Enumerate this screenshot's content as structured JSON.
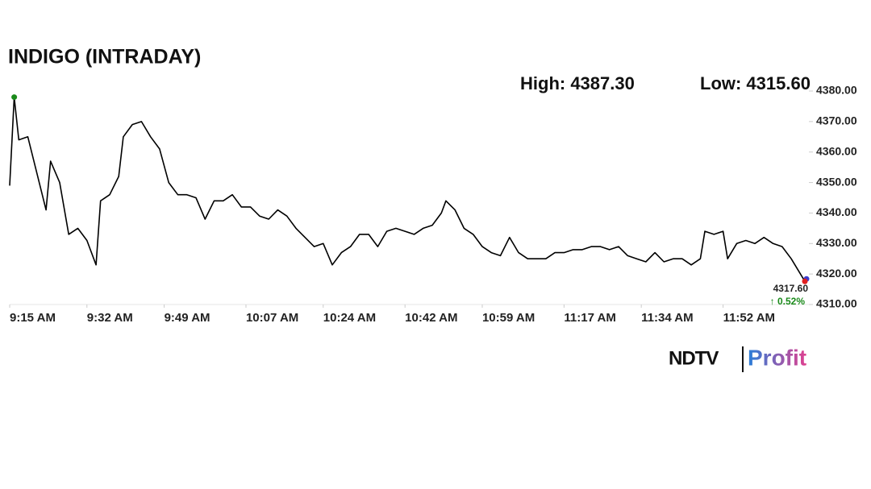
{
  "chart_data": {
    "type": "line",
    "title": "INDIGO (INTRADAY)",
    "high": "High: 4387.30",
    "low": "Low: 4315.60",
    "x": [
      "9:15 AM",
      "9:16 AM",
      "9:17 AM",
      "9:19 AM",
      "9:21 AM",
      "9:23 AM",
      "9:24 AM",
      "9:26 AM",
      "9:28 AM",
      "9:30 AM",
      "9:32 AM",
      "9:34 AM",
      "9:35 AM",
      "9:37 AM",
      "9:39 AM",
      "9:40 AM",
      "9:42 AM",
      "9:44 AM",
      "9:46 AM",
      "9:48 AM",
      "9:50 AM",
      "9:52 AM",
      "9:54 AM",
      "9:56 AM",
      "9:58 AM",
      "10:00 AM",
      "10:02 AM",
      "10:04 AM",
      "10:06 AM",
      "10:08 AM",
      "10:10 AM",
      "10:12 AM",
      "10:14 AM",
      "10:16 AM",
      "10:18 AM",
      "10:20 AM",
      "10:22 AM",
      "10:24 AM",
      "10:26 AM",
      "10:28 AM",
      "10:30 AM",
      "10:32 AM",
      "10:34 AM",
      "10:36 AM",
      "10:38 AM",
      "10:40 AM",
      "10:42 AM",
      "10:44 AM",
      "10:46 AM",
      "10:48 AM",
      "10:50 AM",
      "10:51 AM",
      "10:53 AM",
      "10:55 AM",
      "10:57 AM",
      "10:59 AM",
      "11:01 AM",
      "11:03 AM",
      "11:05 AM",
      "11:07 AM",
      "11:09 AM",
      "11:11 AM",
      "11:13 AM",
      "11:15 AM",
      "11:17 AM",
      "11:19 AM",
      "11:21 AM",
      "11:23 AM",
      "11:25 AM",
      "11:27 AM",
      "11:29 AM",
      "11:31 AM",
      "11:33 AM",
      "11:35 AM",
      "11:37 AM",
      "11:39 AM",
      "11:41 AM",
      "11:43 AM",
      "11:45 AM",
      "11:47 AM",
      "11:48 AM",
      "11:50 AM",
      "11:52 AM",
      "11:53 AM",
      "11:55 AM",
      "11:57 AM",
      "11:59 AM",
      "12:01 PM",
      "12:03 PM",
      "12:05 PM",
      "12:07 PM",
      "12:10 PM"
    ],
    "series": [
      {
        "name": "INDIGO",
        "color": "#000000",
        "values": [
          4349,
          4378,
          4364,
          4365,
          4353,
          4341,
          4357,
          4350,
          4333,
          4335,
          4331,
          4323,
          4344,
          4346,
          4352,
          4365,
          4369,
          4370,
          4365,
          4361,
          4350,
          4346,
          4346,
          4345,
          4338,
          4344,
          4344,
          4346,
          4342,
          4342,
          4339,
          4338,
          4341,
          4339,
          4335,
          4332,
          4329,
          4330,
          4323,
          4327,
          4329,
          4333,
          4333,
          4329,
          4334,
          4335,
          4334,
          4333,
          4335,
          4336,
          4340,
          4344,
          4341,
          4335,
          4333,
          4329,
          4327,
          4326,
          4332,
          4327,
          4325,
          4325,
          4325,
          4327,
          4327,
          4328,
          4328,
          4329,
          4329,
          4328,
          4329,
          4326,
          4325,
          4324,
          4327,
          4324,
          4325,
          4325,
          4323,
          4325,
          4334,
          4333,
          4334,
          4325,
          4330,
          4331,
          4330,
          4332,
          4330,
          4329,
          4325,
          4317.6
        ]
      }
    ],
    "end_label": "4317.60",
    "change": "↑ 0.52%",
    "xlim": [
      "9:15 AM",
      "12:10 PM"
    ],
    "xticks": [
      "9:15 AM",
      "9:32 AM",
      "9:49 AM",
      "10:07 AM",
      "10:24 AM",
      "10:42 AM",
      "10:59 AM",
      "11:17 AM",
      "11:34 AM",
      "11:52 AM"
    ],
    "ylim": [
      4310,
      4380
    ],
    "yticks": [
      {
        "value": 4310,
        "label": "4310.00"
      },
      {
        "value": 4320,
        "label": "4320.00"
      },
      {
        "value": 4330,
        "label": "4330.00"
      },
      {
        "value": 4340,
        "label": "4340.00"
      },
      {
        "value": 4350,
        "label": "4350.00"
      },
      {
        "value": 4360,
        "label": "4360.00"
      },
      {
        "value": 4370,
        "label": "4370.00"
      },
      {
        "value": 4380,
        "label": "4380.00"
      }
    ],
    "grid": false
  },
  "brand": {
    "name": "NDTV",
    "product": "Profit"
  }
}
